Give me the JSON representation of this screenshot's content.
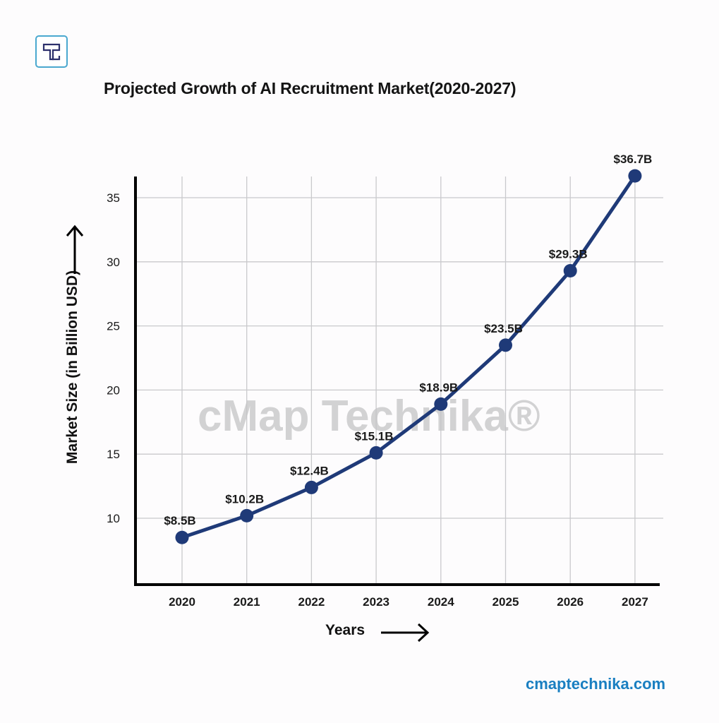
{
  "brand": {
    "logo_icon": "technika-t-logo-icon",
    "website": "cmaptechnika.com",
    "watermark": "cMap Technika®",
    "accent_color": "#1a7fc1",
    "logo_border_color": "#4aa8cf"
  },
  "chart_data": {
    "type": "line",
    "title": "Projected Growth of AI Recruitment Market(2020-2027)",
    "xlabel": "Years",
    "ylabel": "Market Size (in Billion USD)",
    "x": [
      "2020",
      "2021",
      "2022",
      "2023",
      "2024",
      "2025",
      "2026",
      "2027"
    ],
    "series": [
      {
        "name": "AI Recruitment Market",
        "values": [
          8.5,
          10.2,
          12.4,
          15.1,
          18.9,
          23.5,
          29.3,
          36.7
        ],
        "labels": [
          "$8.5B",
          "$10.2B",
          "$12.4B",
          "$15.1B",
          "$18.9B",
          "$23.5B",
          "$29.3B",
          "$36.7B"
        ],
        "color": "#1f3a78"
      }
    ],
    "yticks": [
      10,
      15,
      20,
      25,
      30,
      35
    ],
    "ylim": [
      6.0,
      36.7
    ],
    "grid": true,
    "legend": "none",
    "x_axis_arrow": "right-arrow-icon",
    "y_axis_arrow": "up-arrow-icon"
  }
}
